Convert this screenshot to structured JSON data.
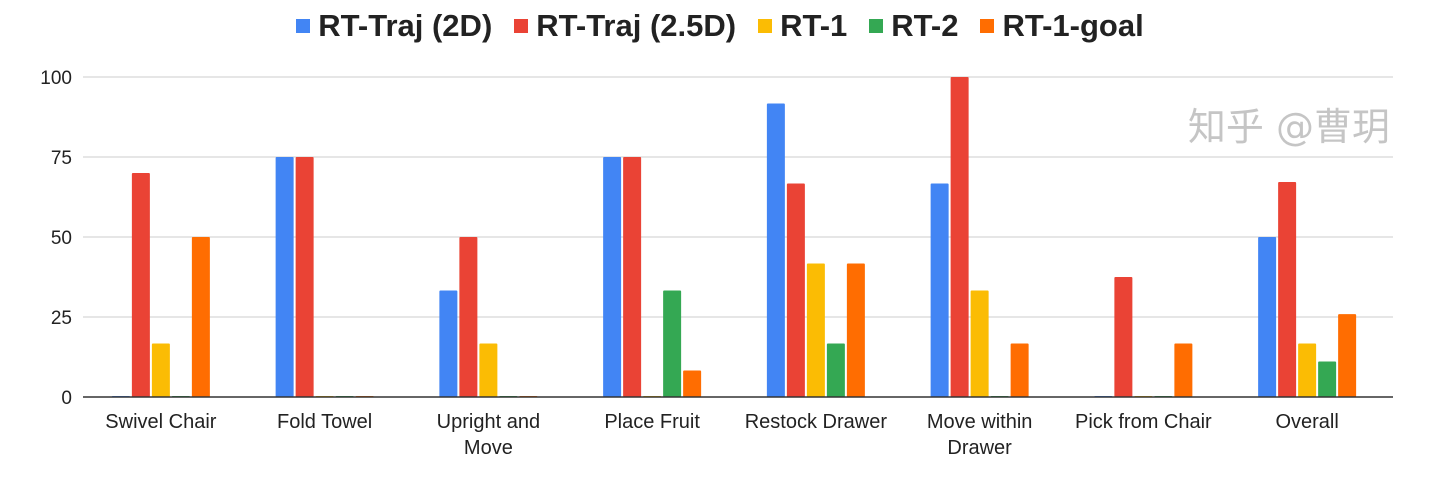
{
  "chart_data": {
    "type": "bar",
    "categories": [
      "Swivel Chair",
      "Fold Towel",
      "Upright and Move",
      "Place Fruit",
      "Restock Drawer",
      "Move within Drawer",
      "Pick from Chair",
      "Overall"
    ],
    "series": [
      {
        "name": "RT-Traj (2D)",
        "color": "#4285f4",
        "values": [
          0,
          75,
          33.3,
          75,
          91.7,
          66.7,
          0,
          50
        ]
      },
      {
        "name": "RT-Traj (2.5D)",
        "color": "#ea4335",
        "values": [
          70,
          75,
          50,
          75,
          66.7,
          100,
          37.5,
          67.2
        ]
      },
      {
        "name": "RT-1",
        "color": "#fbbc04",
        "values": [
          16.7,
          0,
          16.7,
          0,
          41.7,
          33.3,
          0,
          16.7
        ]
      },
      {
        "name": "RT-2",
        "color": "#34a853",
        "values": [
          0,
          0,
          0,
          33.3,
          16.7,
          0,
          0,
          11.1
        ]
      },
      {
        "name": "RT-1-goal",
        "color": "#ff6d01",
        "values": [
          50,
          0,
          0,
          8.3,
          41.7,
          16.7,
          16.7,
          25.9
        ]
      }
    ],
    "ylim": [
      0,
      100
    ],
    "yticks": [
      0,
      25,
      50,
      75,
      100
    ],
    "grid": true,
    "legend": "top"
  },
  "watermark": "知乎 @曹玥"
}
